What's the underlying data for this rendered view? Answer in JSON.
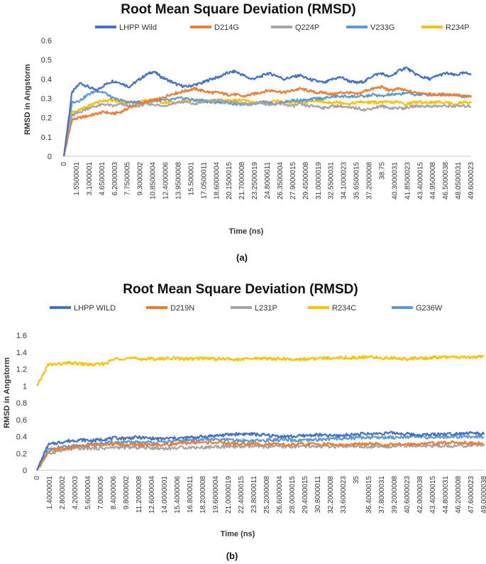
{
  "chart_data": [
    {
      "type": "line",
      "panel_label": "(a)",
      "title": "Root Mean Square Deviation (RMSD)",
      "xlabel": "Time (ns)",
      "ylabel": "RMSD in Angstorm",
      "ylim": [
        0,
        0.6
      ],
      "yticks": [
        "0",
        "0.1",
        "0.2",
        "0.3",
        "0.4",
        "0.5",
        "0.6"
      ],
      "grid": false,
      "legend_position": "top",
      "x_tick_labels": [
        "0",
        "1.5500001",
        "3.1000001",
        "4.6500001",
        "6.2000003",
        "7.7500005",
        "9.3000002",
        "10.8500004",
        "12.4000006",
        "13.9500008",
        "15.500001",
        "17.0500011",
        "18.6000004",
        "20.1500015",
        "21.7000008",
        "23.2500019",
        "24.8000011",
        "26.3500004",
        "27.9000015",
        "29.4500008",
        "31.0000019",
        "32.5500031",
        "34.1000023",
        "35.6500015",
        "37.2000008",
        "38.75",
        "40.3000031",
        "41.8500023",
        "43.4000015",
        "44.9500008",
        "46.5000038",
        "48.0500031",
        "49.6000023"
      ],
      "series": [
        {
          "name": "LHPP Wild",
          "color": "#4472C4",
          "values": [
            0,
            0.33,
            0.38,
            0.36,
            0.34,
            0.37,
            0.39,
            0.38,
            0.36,
            0.39,
            0.42,
            0.44,
            0.41,
            0.39,
            0.37,
            0.36,
            0.37,
            0.38,
            0.4,
            0.41,
            0.43,
            0.44,
            0.42,
            0.4,
            0.41,
            0.43,
            0.42,
            0.4,
            0.41,
            0.42,
            0.4,
            0.39,
            0.38,
            0.4,
            0.41,
            0.39,
            0.38,
            0.39,
            0.42,
            0.43,
            0.41,
            0.44,
            0.46,
            0.43,
            0.41,
            0.4,
            0.42,
            0.43,
            0.42,
            0.43,
            0.43
          ]
        },
        {
          "name": "D214G",
          "color": "#ED7D31",
          "values": [
            0,
            0.19,
            0.2,
            0.21,
            0.22,
            0.23,
            0.22,
            0.23,
            0.25,
            0.27,
            0.28,
            0.29,
            0.3,
            0.32,
            0.33,
            0.34,
            0.35,
            0.34,
            0.33,
            0.33,
            0.32,
            0.32,
            0.31,
            0.32,
            0.33,
            0.34,
            0.34,
            0.33,
            0.34,
            0.35,
            0.34,
            0.33,
            0.33,
            0.32,
            0.33,
            0.33,
            0.32,
            0.34,
            0.35,
            0.36,
            0.34,
            0.35,
            0.34,
            0.33,
            0.33,
            0.32,
            0.32,
            0.32,
            0.32,
            0.31,
            0.31
          ]
        },
        {
          "name": "Q224P",
          "color": "#A5A5A5",
          "values": [
            0,
            0.21,
            0.23,
            0.25,
            0.26,
            0.27,
            0.26,
            0.27,
            0.26,
            0.26,
            0.27,
            0.27,
            0.26,
            0.27,
            0.28,
            0.28,
            0.27,
            0.28,
            0.29,
            0.29,
            0.28,
            0.28,
            0.27,
            0.27,
            0.28,
            0.27,
            0.27,
            0.27,
            0.26,
            0.27,
            0.26,
            0.26,
            0.25,
            0.26,
            0.26,
            0.25,
            0.25,
            0.24,
            0.25,
            0.26,
            0.25,
            0.25,
            0.25,
            0.26,
            0.26,
            0.26,
            0.26,
            0.26,
            0.26,
            0.26,
            0.26
          ]
        },
        {
          "name": "V233G",
          "color": "#5B9BD5",
          "values": [
            0,
            0.28,
            0.29,
            0.32,
            0.34,
            0.33,
            0.3,
            0.29,
            0.28,
            0.28,
            0.28,
            0.29,
            0.29,
            0.29,
            0.3,
            0.3,
            0.29,
            0.29,
            0.28,
            0.28,
            0.28,
            0.27,
            0.27,
            0.27,
            0.28,
            0.28,
            0.27,
            0.28,
            0.29,
            0.29,
            0.29,
            0.3,
            0.3,
            0.31,
            0.31,
            0.31,
            0.31,
            0.31,
            0.32,
            0.31,
            0.32,
            0.32,
            0.33,
            0.32,
            0.32,
            0.32,
            0.32,
            0.32,
            0.32,
            0.31,
            0.31
          ]
        },
        {
          "name": "R234P",
          "color": "#FFC000",
          "values": [
            0,
            0.23,
            0.24,
            0.26,
            0.28,
            0.29,
            0.29,
            0.28,
            0.28,
            0.28,
            0.29,
            0.29,
            0.28,
            0.28,
            0.28,
            0.29,
            0.29,
            0.29,
            0.28,
            0.29,
            0.29,
            0.29,
            0.29,
            0.28,
            0.28,
            0.28,
            0.29,
            0.28,
            0.28,
            0.28,
            0.28,
            0.29,
            0.28,
            0.28,
            0.28,
            0.27,
            0.28,
            0.28,
            0.28,
            0.28,
            0.28,
            0.28,
            0.27,
            0.28,
            0.28,
            0.28,
            0.28,
            0.28,
            0.27,
            0.28,
            0.28
          ]
        }
      ]
    },
    {
      "type": "line",
      "panel_label": "(b)",
      "title": "Root Mean Square Deviation (RMSD)",
      "xlabel": "Time (ns)",
      "ylabel": "RMSD in Angstorm",
      "ylim": [
        0,
        1.6
      ],
      "yticks": [
        "0",
        "0.2",
        "0.4",
        "0.6",
        "0.8",
        "1",
        "1.2",
        "1.4",
        "1.6"
      ],
      "grid": false,
      "legend_position": "top",
      "x_tick_labels": [
        "0",
        "1.4000001",
        "2.8000002",
        "4.2000003",
        "5.6000004",
        "7.0000005",
        "8.4000006",
        "9.8000002",
        "11.2000008",
        "12.6000004",
        "14.0000001",
        "15.4000006",
        "16.8000011",
        "18.2000008",
        "19.6000004",
        "21.0000019",
        "22.4000015",
        "23.8000011",
        "25.2000008",
        "26.6000004",
        "28.0000015",
        "29.4000015",
        "30.8000011",
        "32.2000008",
        "33.6000023",
        "35",
        "36.4000015",
        "37.8000031",
        "39.2000008",
        "40.6000023",
        "42.0000038",
        "43.4000015",
        "44.8000031",
        "46.2000008",
        "47.6000023",
        "49.0000038"
      ],
      "series": [
        {
          "name": "LHPP WILD",
          "color": "#4472C4",
          "values": [
            0,
            0.3,
            0.33,
            0.35,
            0.36,
            0.35,
            0.37,
            0.38,
            0.38,
            0.39,
            0.38,
            0.37,
            0.38,
            0.38,
            0.39,
            0.4,
            0.41,
            0.42,
            0.43,
            0.43,
            0.42,
            0.41,
            0.4,
            0.4,
            0.41,
            0.42,
            0.41,
            0.41,
            0.42,
            0.43,
            0.43,
            0.44,
            0.44,
            0.43,
            0.42,
            0.42,
            0.43,
            0.43,
            0.44,
            0.44,
            0.43
          ]
        },
        {
          "name": "D219N",
          "color": "#ED7D31",
          "values": [
            0,
            0.22,
            0.25,
            0.27,
            0.28,
            0.3,
            0.31,
            0.31,
            0.3,
            0.3,
            0.3,
            0.3,
            0.31,
            0.32,
            0.33,
            0.33,
            0.33,
            0.32,
            0.31,
            0.31,
            0.31,
            0.31,
            0.3,
            0.3,
            0.31,
            0.31,
            0.31,
            0.3,
            0.3,
            0.31,
            0.31,
            0.3,
            0.3,
            0.31,
            0.31,
            0.32,
            0.32,
            0.33,
            0.33,
            0.32,
            0.32
          ]
        },
        {
          "name": "L231P",
          "color": "#A5A5A5",
          "values": [
            0,
            0.2,
            0.23,
            0.25,
            0.26,
            0.26,
            0.26,
            0.27,
            0.27,
            0.27,
            0.27,
            0.26,
            0.26,
            0.27,
            0.27,
            0.27,
            0.28,
            0.28,
            0.28,
            0.28,
            0.28,
            0.28,
            0.28,
            0.28,
            0.28,
            0.28,
            0.28,
            0.28,
            0.28,
            0.28,
            0.28,
            0.28,
            0.29,
            0.29,
            0.29,
            0.29,
            0.29,
            0.29,
            0.29,
            0.3,
            0.3
          ]
        },
        {
          "name": "R234C",
          "color": "#FFC000",
          "values": [
            1.0,
            1.25,
            1.26,
            1.27,
            1.26,
            1.25,
            1.26,
            1.32,
            1.33,
            1.32,
            1.32,
            1.32,
            1.33,
            1.32,
            1.32,
            1.33,
            1.32,
            1.32,
            1.31,
            1.32,
            1.33,
            1.32,
            1.32,
            1.31,
            1.32,
            1.32,
            1.33,
            1.34,
            1.33,
            1.34,
            1.34,
            1.33,
            1.33,
            1.32,
            1.33,
            1.33,
            1.34,
            1.34,
            1.34,
            1.34,
            1.35
          ]
        },
        {
          "name": "G236W",
          "color": "#5B9BD5",
          "values": [
            0,
            0.24,
            0.27,
            0.28,
            0.29,
            0.31,
            0.32,
            0.33,
            0.33,
            0.33,
            0.33,
            0.33,
            0.34,
            0.35,
            0.36,
            0.37,
            0.36,
            0.36,
            0.35,
            0.35,
            0.35,
            0.36,
            0.36,
            0.35,
            0.35,
            0.36,
            0.37,
            0.38,
            0.38,
            0.39,
            0.39,
            0.39,
            0.39,
            0.4,
            0.39,
            0.39,
            0.39,
            0.4,
            0.4,
            0.4,
            0.4
          ]
        }
      ]
    }
  ]
}
